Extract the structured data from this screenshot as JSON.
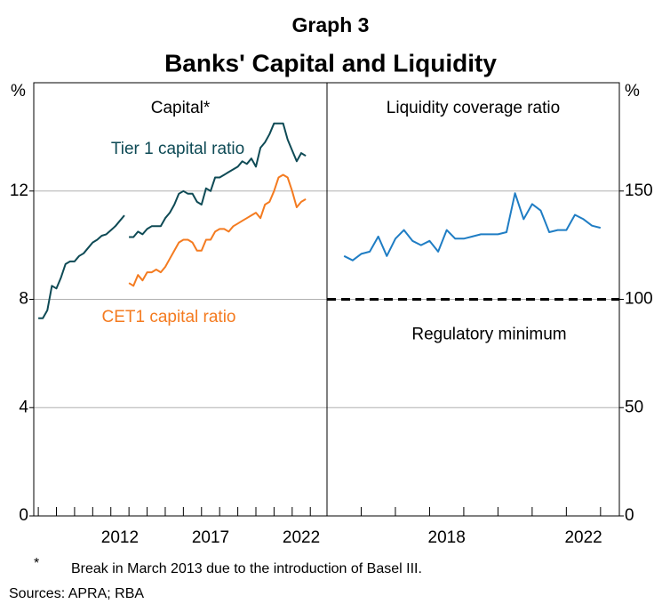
{
  "figure_title": "Graph 3",
  "figure_subtitle": "Banks' Capital and Liquidity",
  "chart_data": [
    {
      "type": "line",
      "title": "Capital*",
      "yunit": "%",
      "yaxis_side": "left",
      "xlim": [
        2007.75,
        2023.92
      ],
      "ylim": [
        0,
        16
      ],
      "xticks": [
        {
          "value": 2012.5,
          "label": "2012"
        },
        {
          "value": 2017.5,
          "label": "2017"
        },
        {
          "value": 2022.5,
          "label": "2022"
        }
      ],
      "xminorticks": [
        2008,
        2009,
        2010,
        2011,
        2012,
        2013,
        2014,
        2015,
        2016,
        2017,
        2018,
        2019,
        2020,
        2021,
        2022,
        2023
      ],
      "yticks": [
        0,
        4,
        8,
        12
      ],
      "grid": true,
      "series": [
        {
          "name": "Tier 1 capital ratio",
          "color": "#0e4a55",
          "x": [
            2008,
            2008.25,
            2008.5,
            2008.75,
            2009,
            2009.25,
            2009.5,
            2009.75,
            2010,
            2010.25,
            2010.5,
            2010.75,
            2011,
            2011.25,
            2011.5,
            2011.75,
            2012,
            2012.25,
            2012.5,
            2012.75,
            2012.875,
            2013,
            2013.25,
            2013.5,
            2013.75,
            2014,
            2014.25,
            2014.5,
            2014.75,
            2015,
            2015.25,
            2015.5,
            2015.75,
            2016,
            2016.25,
            2016.5,
            2016.75,
            2017,
            2017.25,
            2017.5,
            2017.75,
            2018,
            2018.25,
            2018.5,
            2018.75,
            2019,
            2019.25,
            2019.5,
            2019.75,
            2020,
            2020.25,
            2020.5,
            2020.75,
            2021,
            2021.25,
            2021.5,
            2021.75,
            2022,
            2022.25,
            2022.5,
            2022.75
          ],
          "values": [
            7.3,
            7.3,
            7.6,
            8.5,
            8.4,
            8.8,
            9.3,
            9.4,
            9.4,
            9.6,
            9.7,
            9.9,
            10.1,
            10.2,
            10.35,
            10.4,
            10.55,
            10.7,
            10.9,
            11.1,
            null,
            10.3,
            10.3,
            10.5,
            10.4,
            10.6,
            10.7,
            10.7,
            10.7,
            11.0,
            11.2,
            11.5,
            11.9,
            12.0,
            11.9,
            11.9,
            11.6,
            11.5,
            12.1,
            12.0,
            12.5,
            12.5,
            12.6,
            12.7,
            12.8,
            12.9,
            13.1,
            13.0,
            13.2,
            12.9,
            13.6,
            13.8,
            14.1,
            14.5,
            14.5,
            14.5,
            13.9,
            13.5,
            13.1,
            13.4,
            13.3
          ]
        },
        {
          "name": "CET1 capital ratio",
          "color": "#f47b20",
          "x": [
            2013,
            2013.25,
            2013.5,
            2013.75,
            2014,
            2014.25,
            2014.5,
            2014.75,
            2015,
            2015.25,
            2015.5,
            2015.75,
            2016,
            2016.25,
            2016.5,
            2016.75,
            2017,
            2017.25,
            2017.5,
            2017.75,
            2018,
            2018.25,
            2018.5,
            2018.75,
            2019,
            2019.25,
            2019.5,
            2019.75,
            2020,
            2020.25,
            2020.5,
            2020.75,
            2021,
            2021.25,
            2021.5,
            2021.75,
            2022,
            2022.25,
            2022.5,
            2022.75
          ],
          "values": [
            8.6,
            8.5,
            8.9,
            8.7,
            9.0,
            9.0,
            9.1,
            9.0,
            9.2,
            9.5,
            9.8,
            10.1,
            10.2,
            10.2,
            10.1,
            9.8,
            9.8,
            10.2,
            10.2,
            10.5,
            10.6,
            10.6,
            10.5,
            10.7,
            10.8,
            10.9,
            11.0,
            11.1,
            11.2,
            11.0,
            11.5,
            11.6,
            12.0,
            12.5,
            12.6,
            12.5,
            12.0,
            11.4,
            11.6,
            11.7
          ]
        }
      ]
    },
    {
      "type": "line",
      "title": "Liquidity coverage ratio",
      "yunit": "%",
      "yaxis_side": "right",
      "xlim": [
        2015,
        2023.55
      ],
      "ylim": [
        0,
        200
      ],
      "xticks": [
        {
          "value": 2018.5,
          "label": "2018"
        },
        {
          "value": 2022.5,
          "label": "2022"
        }
      ],
      "xminorticks": [
        2016,
        2017,
        2018,
        2019,
        2020,
        2021,
        2022,
        2023
      ],
      "yticks": [
        0,
        50,
        100,
        150
      ],
      "grid": true,
      "reference_line": {
        "value": 100,
        "label": "Regulatory minimum"
      },
      "series": [
        {
          "name": "Liquidity coverage ratio",
          "color": "#1f7dc4",
          "x": [
            2015.5,
            2015.75,
            2016,
            2016.25,
            2016.5,
            2016.75,
            2017,
            2017.25,
            2017.5,
            2017.75,
            2018,
            2018.25,
            2018.5,
            2018.75,
            2019,
            2019.25,
            2019.5,
            2019.75,
            2020,
            2020.25,
            2020.5,
            2020.75,
            2021,
            2021.25,
            2021.5,
            2021.75,
            2022,
            2022.25,
            2022.5,
            2022.75,
            2023
          ],
          "values": [
            120,
            118,
            121,
            122,
            129,
            120,
            128,
            132,
            127,
            125,
            127,
            122,
            132,
            128,
            128,
            129,
            130,
            130,
            130,
            131,
            149,
            137,
            144,
            141,
            131,
            132,
            132,
            139,
            137,
            134,
            133
          ]
        }
      ]
    }
  ],
  "footnote": {
    "symbol": "*",
    "text": "Break in March 2013 due to the introduction of Basel III."
  },
  "sources": "Sources: APRA; RBA"
}
